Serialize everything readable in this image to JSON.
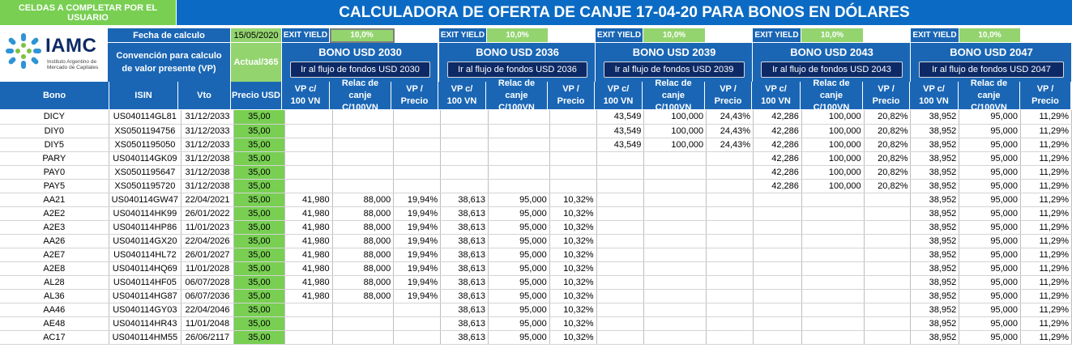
{
  "top_note": "CELDAS A COMPLETAR POR EL USUARIO",
  "title": "CALCULADORA DE OFERTA DE CANJE 17-04-20 PARA BONOS EN DÓLARES",
  "logo": {
    "text": "IAMC",
    "sub1": "Instituto Argentino de",
    "sub2": "Mercado de Capitales"
  },
  "fecha_label": "Fecha de calculo",
  "fecha_value": "15/05/2020",
  "convencion_label": "Convención para calculo de valor presente (VP)",
  "convencion_value": "Actual/365",
  "colors": {
    "header_blue": "#0b6bc4",
    "input_green": "#78cf52",
    "button_navy": "#0d2a66"
  },
  "groups": [
    {
      "exit_label": "EXIT YIELD",
      "exit_value": "10,0%",
      "name": "BONO USD 2030",
      "button": "Ir al flujo de fondos  USD 2030"
    },
    {
      "exit_label": "EXIT YIELD",
      "exit_value": "10,0%",
      "name": "BONO USD 2036",
      "button": "Ir al flujo de fondos  USD 2036"
    },
    {
      "exit_label": "EXIT YIELD",
      "exit_value": "10,0%",
      "name": "BONO USD 2039",
      "button": "Ir al flujo de fondos  USD 2039"
    },
    {
      "exit_label": "EXIT YIELD",
      "exit_value": "10,0%",
      "name": "BONO USD 2043",
      "button": "Ir al flujo de fondos  USD 2043"
    },
    {
      "exit_label": "EXIT YIELD",
      "exit_value": "10,0%",
      "name": "BONO USD 2047",
      "button": "Ir al flujo de fondos  USD 2047"
    }
  ],
  "headers": {
    "bono": "Bono",
    "isin": "ISIN",
    "vto": "Vto",
    "precio": "Precio USD",
    "vp1": "VP c/",
    "vp2": "100 VN",
    "rel1": "Relac de canje",
    "rel2": "C/100VN",
    "vpp1": "VP /",
    "vpp2": "Precio"
  },
  "rows": [
    {
      "bono": "DICY",
      "isin": "US040114GL81",
      "vto": "31/12/2033",
      "precio": "35,00",
      "g": [
        null,
        null,
        [
          "43,549",
          "100,000",
          "24,43%"
        ],
        [
          "42,286",
          "100,000",
          "20,82%"
        ],
        [
          "38,952",
          "95,000",
          "11,29%"
        ]
      ]
    },
    {
      "bono": "DIY0",
      "isin": "XS0501194756",
      "vto": "31/12/2033",
      "precio": "35,00",
      "g": [
        null,
        null,
        [
          "43,549",
          "100,000",
          "24,43%"
        ],
        [
          "42,286",
          "100,000",
          "20,82%"
        ],
        [
          "38,952",
          "95,000",
          "11,29%"
        ]
      ]
    },
    {
      "bono": "DIY5",
      "isin": "XS0501195050",
      "vto": "31/12/2033",
      "precio": "35,00",
      "g": [
        null,
        null,
        [
          "43,549",
          "100,000",
          "24,43%"
        ],
        [
          "42,286",
          "100,000",
          "20,82%"
        ],
        [
          "38,952",
          "95,000",
          "11,29%"
        ]
      ]
    },
    {
      "bono": "PARY",
      "isin": "US040114GK09",
      "vto": "31/12/2038",
      "precio": "35,00",
      "g": [
        null,
        null,
        null,
        [
          "42,286",
          "100,000",
          "20,82%"
        ],
        [
          "38,952",
          "95,000",
          "11,29%"
        ]
      ]
    },
    {
      "bono": "PAY0",
      "isin": "XS0501195647",
      "vto": "31/12/2038",
      "precio": "35,00",
      "g": [
        null,
        null,
        null,
        [
          "42,286",
          "100,000",
          "20,82%"
        ],
        [
          "38,952",
          "95,000",
          "11,29%"
        ]
      ]
    },
    {
      "bono": "PAY5",
      "isin": "XS0501195720",
      "vto": "31/12/2038",
      "precio": "35,00",
      "g": [
        null,
        null,
        null,
        [
          "42,286",
          "100,000",
          "20,82%"
        ],
        [
          "38,952",
          "95,000",
          "11,29%"
        ]
      ]
    },
    {
      "bono": "AA21",
      "isin": "US040114GW47",
      "vto": "22/04/2021",
      "precio": "35,00",
      "g": [
        [
          "41,980",
          "88,000",
          "19,94%"
        ],
        [
          "38,613",
          "95,000",
          "10,32%"
        ],
        null,
        null,
        [
          "38,952",
          "95,000",
          "11,29%"
        ]
      ]
    },
    {
      "bono": "A2E2",
      "isin": "US040114HK99",
      "vto": "26/01/2022",
      "precio": "35,00",
      "g": [
        [
          "41,980",
          "88,000",
          "19,94%"
        ],
        [
          "38,613",
          "95,000",
          "10,32%"
        ],
        null,
        null,
        [
          "38,952",
          "95,000",
          "11,29%"
        ]
      ]
    },
    {
      "bono": "A2E3",
      "isin": "US040114HP86",
      "vto": "11/01/2023",
      "precio": "35,00",
      "g": [
        [
          "41,980",
          "88,000",
          "19,94%"
        ],
        [
          "38,613",
          "95,000",
          "10,32%"
        ],
        null,
        null,
        [
          "38,952",
          "95,000",
          "11,29%"
        ]
      ]
    },
    {
      "bono": "AA26",
      "isin": "US040114GX20",
      "vto": "22/04/2026",
      "precio": "35,00",
      "g": [
        [
          "41,980",
          "88,000",
          "19,94%"
        ],
        [
          "38,613",
          "95,000",
          "10,32%"
        ],
        null,
        null,
        [
          "38,952",
          "95,000",
          "11,29%"
        ]
      ]
    },
    {
      "bono": "A2E7",
      "isin": "US040114HL72",
      "vto": "26/01/2027",
      "precio": "35,00",
      "g": [
        [
          "41,980",
          "88,000",
          "19,94%"
        ],
        [
          "38,613",
          "95,000",
          "10,32%"
        ],
        null,
        null,
        [
          "38,952",
          "95,000",
          "11,29%"
        ]
      ]
    },
    {
      "bono": "A2E8",
      "isin": "US040114HQ69",
      "vto": "11/01/2028",
      "precio": "35,00",
      "g": [
        [
          "41,980",
          "88,000",
          "19,94%"
        ],
        [
          "38,613",
          "95,000",
          "10,32%"
        ],
        null,
        null,
        [
          "38,952",
          "95,000",
          "11,29%"
        ]
      ]
    },
    {
      "bono": "AL28",
      "isin": "US040114HF05",
      "vto": "06/07/2028",
      "precio": "35,00",
      "g": [
        [
          "41,980",
          "88,000",
          "19,94%"
        ],
        [
          "38,613",
          "95,000",
          "10,32%"
        ],
        null,
        null,
        [
          "38,952",
          "95,000",
          "11,29%"
        ]
      ]
    },
    {
      "bono": "AL36",
      "isin": "US040114HG87",
      "vto": "06/07/2036",
      "precio": "35,00",
      "g": [
        [
          "41,980",
          "88,000",
          "19,94%"
        ],
        [
          "38,613",
          "95,000",
          "10,32%"
        ],
        null,
        null,
        [
          "38,952",
          "95,000",
          "11,29%"
        ]
      ]
    },
    {
      "bono": "AA46",
      "isin": "US040114GY03",
      "vto": "22/04/2046",
      "precio": "35,00",
      "g": [
        null,
        [
          "38,613",
          "95,000",
          "10,32%"
        ],
        null,
        null,
        [
          "38,952",
          "95,000",
          "11,29%"
        ]
      ]
    },
    {
      "bono": "AE48",
      "isin": "US040114HR43",
      "vto": "11/01/2048",
      "precio": "35,00",
      "g": [
        null,
        [
          "38,613",
          "95,000",
          "10,32%"
        ],
        null,
        null,
        [
          "38,952",
          "95,000",
          "11,29%"
        ]
      ]
    },
    {
      "bono": "AC17",
      "isin": "US040114HM55",
      "vto": "26/06/2117",
      "precio": "35,00",
      "g": [
        null,
        [
          "38,613",
          "95,000",
          "10,32%"
        ],
        null,
        null,
        [
          "38,952",
          "95,000",
          "11,29%"
        ]
      ]
    }
  ]
}
